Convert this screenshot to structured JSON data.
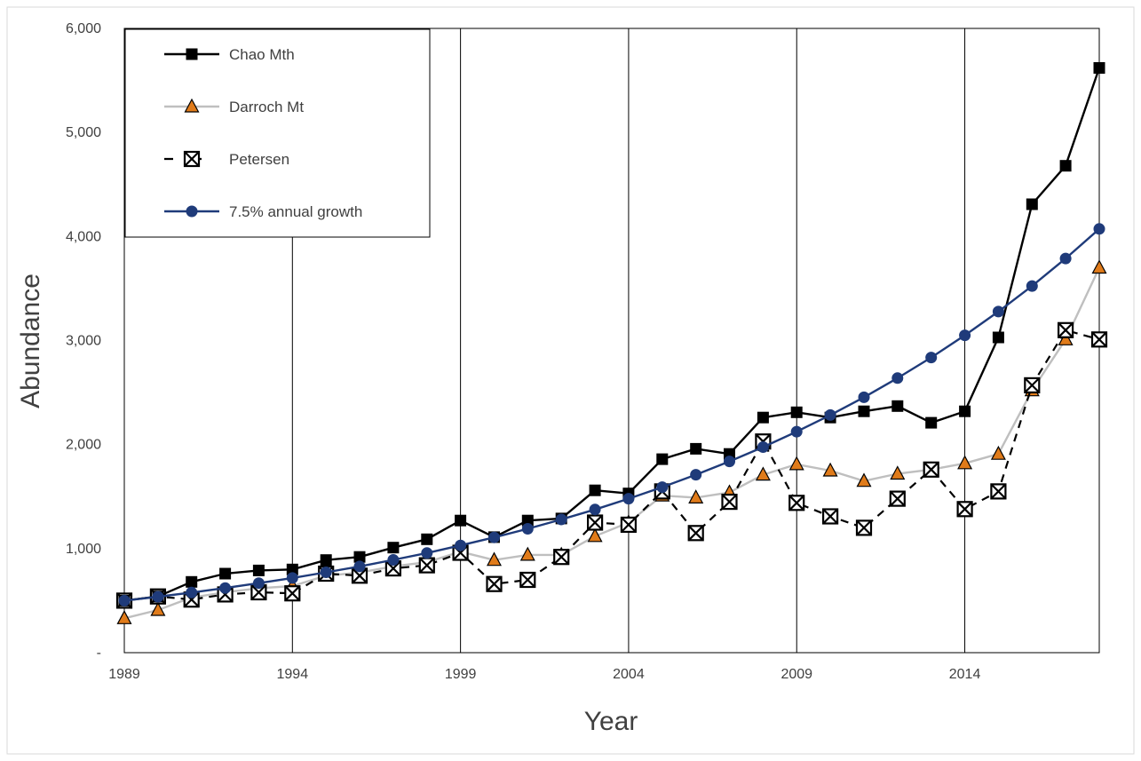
{
  "chart_data": {
    "type": "line",
    "title": "",
    "xlabel": "Year",
    "ylabel": "Abundance",
    "xlim": [
      1989,
      2018
    ],
    "ylim": [
      0,
      6000
    ],
    "x_ticks": [
      1989,
      1994,
      1999,
      2004,
      2009,
      2014
    ],
    "x_tick_labels": [
      "1989",
      "1994",
      "1999",
      "2004",
      "2009",
      "2014"
    ],
    "y_ticks": [
      0,
      1000,
      2000,
      3000,
      4000,
      5000,
      6000
    ],
    "y_tick_labels": [
      "-",
      "1,000",
      "2,000",
      "3,000",
      "4,000",
      "5,000",
      "6,000"
    ],
    "grid": "vertical lines at labeled years",
    "legend_position": "top-left",
    "x": [
      1989,
      1990,
      1991,
      1992,
      1993,
      1994,
      1995,
      1996,
      1997,
      1998,
      1999,
      2000,
      2001,
      2002,
      2003,
      2004,
      2005,
      2006,
      2007,
      2008,
      2009,
      2010,
      2011,
      2012,
      2013,
      2014,
      2015,
      2016,
      2017,
      2018
    ],
    "series": [
      {
        "name": "Chao Mth",
        "color": "#000000",
        "line_style": "solid",
        "marker": "square",
        "values": [
          500,
          540,
          680,
          760,
          790,
          800,
          890,
          920,
          1010,
          1090,
          1270,
          1110,
          1270,
          1290,
          1560,
          1530,
          1860,
          1960,
          1910,
          2260,
          2310,
          2260,
          2320,
          2370,
          2210,
          2320,
          3030,
          4310,
          4680,
          5620
        ]
      },
      {
        "name": "Darroch Mt",
        "color": "#bfbfbf",
        "marker_color": "#e07b1a",
        "line_style": "solid",
        "marker": "triangle",
        "values": [
          330,
          410,
          530,
          580,
          620,
          640,
          740,
          770,
          830,
          870,
          970,
          890,
          940,
          940,
          1120,
          1250,
          1510,
          1490,
          1540,
          1710,
          1810,
          1750,
          1650,
          1720,
          1760,
          1820,
          1910,
          2520,
          3010,
          3700
        ]
      },
      {
        "name": "Petersen",
        "color": "#000000",
        "line_style": "dashed",
        "marker": "boxed-x",
        "values": [
          500,
          540,
          510,
          560,
          580,
          570,
          760,
          740,
          810,
          840,
          960,
          660,
          700,
          920,
          1250,
          1230,
          1550,
          1150,
          1450,
          2030,
          1440,
          1310,
          1200,
          1480,
          1760,
          1380,
          1550,
          2570,
          3100,
          3010
        ]
      },
      {
        "name": "7.5% annual growth",
        "color": "#1f3b7a",
        "line_style": "solid",
        "marker": "circle",
        "values": [
          500,
          538,
          578,
          621,
          668,
          718,
          772,
          829,
          892,
          958,
          1031,
          1108,
          1191,
          1280,
          1376,
          1480,
          1591,
          1710,
          1838,
          1976,
          2124,
          2284,
          2455,
          2639,
          2837,
          3050,
          3278,
          3524,
          3789,
          4073
        ]
      }
    ]
  }
}
